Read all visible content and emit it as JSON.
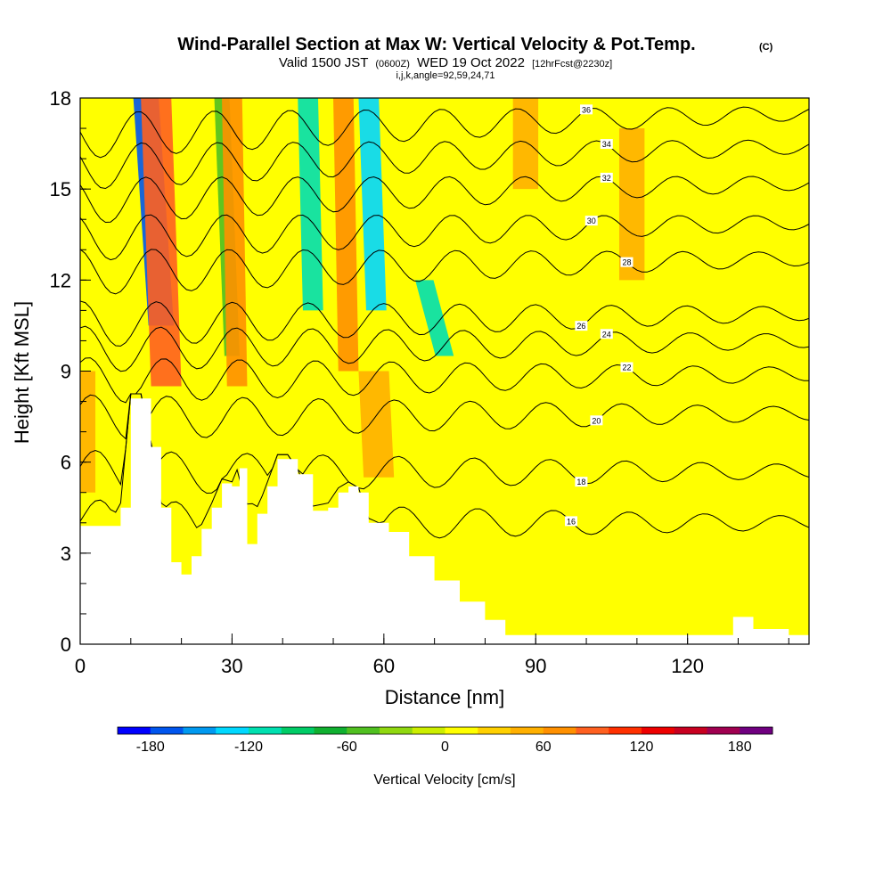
{
  "header": {
    "title": "Wind-Parallel Section at Max W: Vertical Velocity & Pot.Temp.",
    "copyright": "(C)",
    "subtitle_a": "Valid 1500 JST",
    "subtitle_b": "(0600Z)",
    "subtitle_c": "WED 19 Oct 2022",
    "subtitle_d": "[12hrFcst@2230z]",
    "info": "i,j,k,angle=92,59,24,71"
  },
  "colors": {
    "terrain": "#ffffff",
    "contour": "#000000",
    "colorbar": [
      "#0000ff",
      "#0055ee",
      "#0099f0",
      "#00d8ff",
      "#00e0b0",
      "#00cc66",
      "#10b030",
      "#50c020",
      "#90d810",
      "#ccee00",
      "#ffff00",
      "#ffd000",
      "#ffb000",
      "#ff9000",
      "#ff6020",
      "#ff3000",
      "#ee0000",
      "#c80020",
      "#a00050",
      "#700080"
    ]
  },
  "chart_data": {
    "type": "heatmap",
    "title": "Wind-Parallel Section at Max W: Vertical Velocity & Pot.Temp.",
    "xlabel": "Distance [nm]",
    "ylabel": "Height [Kft MSL]",
    "xlim": [
      0,
      144
    ],
    "ylim": [
      0,
      18
    ],
    "x_ticks": [
      "0",
      "30",
      "60",
      "90",
      "120"
    ],
    "x_tick_values": [
      0,
      30,
      60,
      90,
      120
    ],
    "y_ticks": [
      "0",
      "3",
      "6",
      "9",
      "12",
      "15",
      "18"
    ],
    "y_tick_values": [
      0,
      3,
      6,
      9,
      12,
      15,
      18
    ],
    "colorbar": {
      "label": "Vertical Velocity [cm/s]",
      "min": -200,
      "max": 200,
      "step": 20,
      "tick_labels": [
        "-180",
        "-120",
        "-60",
        "0",
        "60",
        "120",
        "180"
      ],
      "tick_values": [
        -180,
        -120,
        -60,
        0,
        60,
        120,
        180
      ]
    },
    "vertical_velocity_bands": [
      {
        "x": 13,
        "w": 2.5,
        "value": -165,
        "top": 18,
        "bottom": 10.5,
        "tilt": 3
      },
      {
        "x": 28,
        "w": 1.5,
        "value": -60,
        "top": 18,
        "bottom": 9.5,
        "tilt": 2
      },
      {
        "x": 45,
        "w": 2,
        "value": -110,
        "top": 18,
        "bottom": 11,
        "tilt": 1
      },
      {
        "x": 57,
        "w": 2,
        "value": -140,
        "top": 18,
        "bottom": 11,
        "tilt": 1.5
      },
      {
        "x": 68,
        "w": 1.8,
        "value": -110,
        "top": 12,
        "bottom": 9.5,
        "tilt": 4
      },
      {
        "x": 15,
        "w": 3,
        "value": 80,
        "top": 18,
        "bottom": 8.5,
        "tilt": 2
      },
      {
        "x": 30,
        "w": 2,
        "value": 70,
        "top": 18,
        "bottom": 8.5,
        "tilt": 1
      },
      {
        "x": 52,
        "w": 2,
        "value": 65,
        "top": 18,
        "bottom": 9,
        "tilt": 1
      },
      {
        "x": 1,
        "w": 2,
        "value": 55,
        "top": 9,
        "bottom": 5,
        "tilt": 0
      },
      {
        "x": 58,
        "w": 3,
        "value": 45,
        "top": 9,
        "bottom": 5.5,
        "tilt": 1
      },
      {
        "x": 88,
        "w": 2.5,
        "value": 45,
        "top": 18,
        "bottom": 15,
        "tilt": 0
      },
      {
        "x": 109,
        "w": 2.5,
        "value": 40,
        "top": 17,
        "bottom": 12,
        "tilt": 0
      }
    ],
    "terrain": [
      {
        "x": 0,
        "h": 3.9
      },
      {
        "x": 6,
        "h": 3.9
      },
      {
        "x": 8,
        "h": 4.5
      },
      {
        "x": 10,
        "h": 8.1
      },
      {
        "x": 12,
        "h": 8.1
      },
      {
        "x": 14,
        "h": 6.5
      },
      {
        "x": 16,
        "h": 4.5
      },
      {
        "x": 18,
        "h": 2.7
      },
      {
        "x": 20,
        "h": 2.3
      },
      {
        "x": 22,
        "h": 2.9
      },
      {
        "x": 24,
        "h": 3.8
      },
      {
        "x": 26,
        "h": 4.5
      },
      {
        "x": 28,
        "h": 5.3
      },
      {
        "x": 30,
        "h": 5.2
      },
      {
        "x": 31.5,
        "h": 5.8
      },
      {
        "x": 33,
        "h": 3.3
      },
      {
        "x": 35,
        "h": 4.3
      },
      {
        "x": 37,
        "h": 5.2
      },
      {
        "x": 39,
        "h": 6.1
      },
      {
        "x": 41,
        "h": 6.1
      },
      {
        "x": 43,
        "h": 5.6
      },
      {
        "x": 46,
        "h": 4.4
      },
      {
        "x": 49,
        "h": 4.5
      },
      {
        "x": 51,
        "h": 5.0
      },
      {
        "x": 53,
        "h": 5.2
      },
      {
        "x": 55,
        "h": 5.0
      },
      {
        "x": 57,
        "h": 4.0
      },
      {
        "x": 61,
        "h": 3.7
      },
      {
        "x": 65,
        "h": 2.9
      },
      {
        "x": 70,
        "h": 2.1
      },
      {
        "x": 75,
        "h": 1.4
      },
      {
        "x": 80,
        "h": 0.8
      },
      {
        "x": 84,
        "h": 0.3
      },
      {
        "x": 92,
        "h": 0.3
      },
      {
        "x": 127,
        "h": 0.3
      },
      {
        "x": 129,
        "h": 0.9
      },
      {
        "x": 133,
        "h": 0.5
      },
      {
        "x": 140,
        "h": 0.3
      },
      {
        "x": 144,
        "h": 0.3
      }
    ],
    "isentropes": [
      {
        "label": "16",
        "base": 3.6,
        "label_x": 97
      },
      {
        "label": "18",
        "base": 5.3,
        "label_x": 99
      },
      {
        "label": "20",
        "base": 7.2,
        "label_x": 102
      },
      {
        "label": "22",
        "base": 8.5,
        "label_x": 108
      },
      {
        "label": "24",
        "base": 9.6,
        "label_x": 104
      },
      {
        "label": "26",
        "base": 10.5,
        "label_x": 99
      },
      {
        "label": "28",
        "base": 12.3,
        "label_x": 108
      },
      {
        "label": "30",
        "base": 13.5,
        "label_x": 101
      },
      {
        "label": "32",
        "base": 14.8,
        "label_x": 104
      },
      {
        "label": "34",
        "base": 16.0,
        "label_x": 104
      },
      {
        "label": "36",
        "base": 17.1,
        "label_x": 100
      }
    ]
  }
}
